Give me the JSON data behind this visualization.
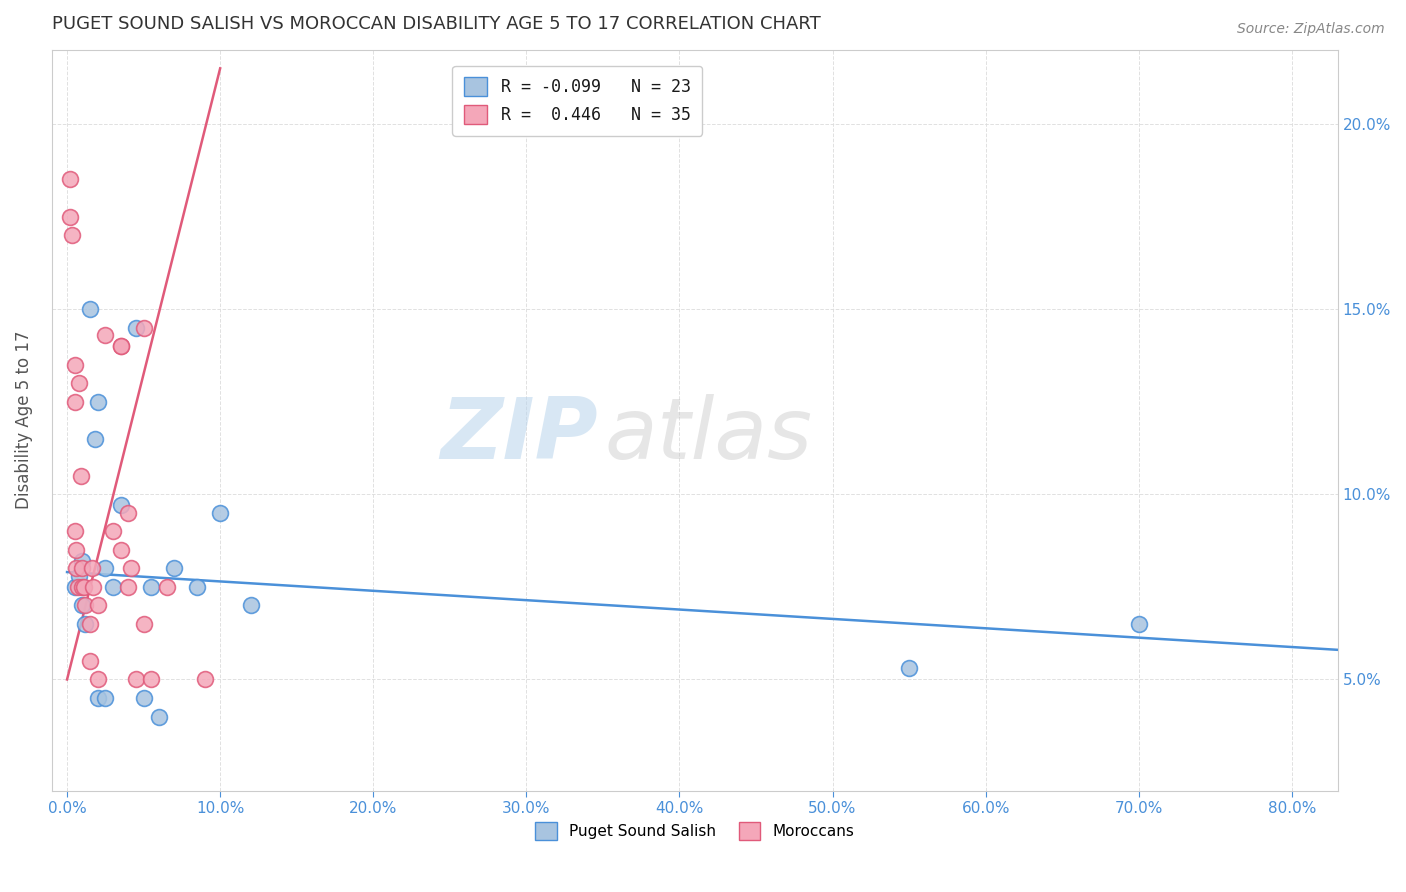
{
  "title": "PUGET SOUND SALISH VS MOROCCAN DISABILITY AGE 5 TO 17 CORRELATION CHART",
  "source": "Source: ZipAtlas.com",
  "ylabel": "Disability Age 5 to 17",
  "legend_label1": "R = -0.099   N = 23",
  "legend_label2": "R =  0.446   N = 35",
  "legend_color1": "#a8c4e0",
  "legend_color2": "#f4a7b9",
  "watermark_zip": "ZIP",
  "watermark_atlas": "atlas",
  "blue_scatter_color": "#a8c4e0",
  "pink_scatter_color": "#f4a7b9",
  "blue_line_color": "#4a90d9",
  "pink_line_color": "#e05a7a",
  "background_color": "#ffffff",
  "grid_color": "#dddddd",
  "title_color": "#333333",
  "axis_label_color": "#4a90d9",
  "blue_points_x": [
    0.5,
    1.5,
    2.0,
    2.5,
    3.0,
    1.0,
    1.0,
    1.2,
    2.0,
    2.5,
    3.5,
    5.5,
    6.0,
    7.0,
    8.5,
    10.0,
    12.0,
    55.0,
    70.0,
    0.8,
    1.8,
    4.5,
    5.0
  ],
  "blue_points_y": [
    7.5,
    15.0,
    12.5,
    8.0,
    7.5,
    8.2,
    7.0,
    6.5,
    4.5,
    4.5,
    9.7,
    7.5,
    4.0,
    8.0,
    7.5,
    9.5,
    7.0,
    5.3,
    6.5,
    7.8,
    11.5,
    14.5,
    4.5
  ],
  "pink_points_x": [
    0.2,
    0.2,
    0.3,
    0.5,
    0.5,
    0.5,
    0.6,
    0.6,
    0.7,
    0.8,
    0.9,
    1.0,
    1.0,
    1.1,
    1.2,
    1.5,
    1.5,
    1.6,
    1.7,
    2.0,
    2.0,
    2.5,
    3.0,
    3.5,
    3.5,
    3.5,
    4.0,
    4.0,
    4.2,
    4.5,
    5.0,
    5.0,
    5.5,
    6.5,
    9.0
  ],
  "pink_points_y": [
    18.5,
    17.5,
    17.0,
    13.5,
    12.5,
    9.0,
    8.5,
    8.0,
    7.5,
    13.0,
    10.5,
    8.0,
    7.5,
    7.5,
    7.0,
    6.5,
    5.5,
    8.0,
    7.5,
    7.0,
    5.0,
    14.3,
    9.0,
    14.0,
    14.0,
    8.5,
    9.5,
    7.5,
    8.0,
    5.0,
    14.5,
    6.5,
    5.0,
    7.5,
    5.0
  ],
  "xmin": -1.0,
  "xmax": 83.0,
  "ymin": 2.0,
  "ymax": 22.0,
  "xticks": [
    0,
    10,
    20,
    30,
    40,
    50,
    60,
    70,
    80
  ],
  "xtick_labels": [
    "0.0%",
    "10.0%",
    "20.0%",
    "30.0%",
    "40.0%",
    "50.0%",
    "60.0%",
    "70.0%",
    "80.0%"
  ],
  "yticks": [
    5.0,
    10.0,
    15.0,
    20.0
  ],
  "ytick_labels": [
    "5.0%",
    "10.0%",
    "15.0%",
    "20.0%"
  ],
  "blue_trend_x": [
    0,
    83
  ],
  "blue_trend_y": [
    7.9,
    5.8
  ],
  "pink_trend_x0": 0,
  "pink_trend_y0": 5.0,
  "pink_trend_x1": 10,
  "pink_trend_y1": 21.5
}
